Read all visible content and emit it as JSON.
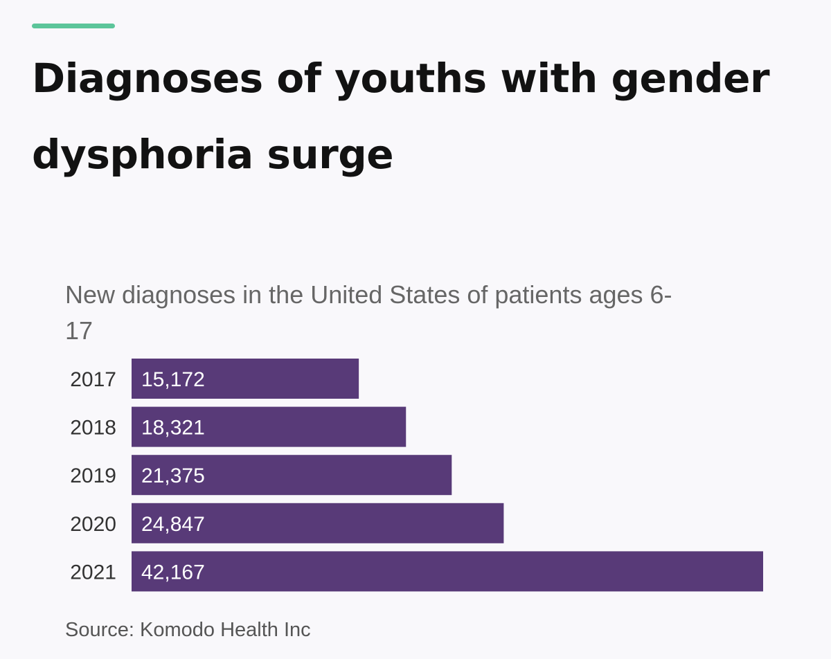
{
  "colors": {
    "accent": "#5cc59a",
    "bar": "#583a78",
    "bar_label": "#ffffff",
    "background": "#f9f8fb"
  },
  "chart_data": {
    "type": "bar",
    "orientation": "horizontal",
    "title": "Diagnoses of youths with gender dysphoria surge",
    "subtitle": "New diagnoses in the United States of patients ages 6-17",
    "categories": [
      "2017",
      "2018",
      "2019",
      "2020",
      "2021"
    ],
    "values": [
      15172,
      18321,
      21375,
      24847,
      42167
    ],
    "value_labels": [
      "15,172",
      "18,321",
      "21,375",
      "24,847",
      "42,167"
    ],
    "xlabel": "",
    "ylabel": "",
    "xlim": [
      0,
      42167
    ],
    "grid": false,
    "legend": "none",
    "source": "Source: Komodo Health Inc"
  }
}
